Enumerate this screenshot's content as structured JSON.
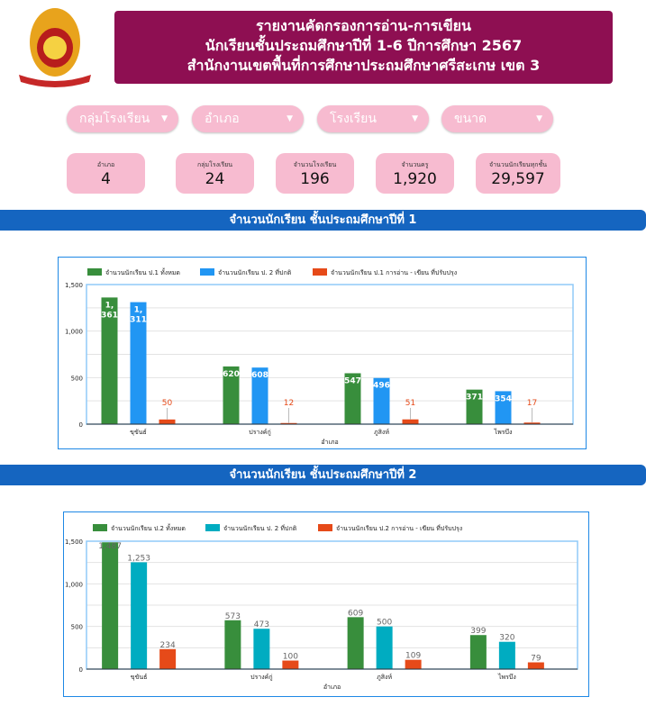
{
  "header": {
    "line1": "รายงานคัดกรองการอ่าน-การเขียน",
    "line2": "นักเรียนชั้นประถมศึกษาปีที่ 1-6 ปีการศึกษา 2567",
    "line3": "สำนักงานเขตพื้นที่การศึกษาประถมศึกษาศรีสะเกษ เขต 3"
  },
  "filters": [
    "กลุ่มโรงเรียน",
    "อำเภอ",
    "โรงเรียน",
    "ขนาด"
  ],
  "stats": [
    {
      "label": "อำเภอ",
      "value": "4"
    },
    {
      "label": "กลุ่มโรงเรียน",
      "value": "24"
    },
    {
      "label": "จำนวนโรงเรียน",
      "value": "196"
    },
    {
      "label": "จำนวนครู",
      "value": "1,920"
    },
    {
      "label": "จำนวนนักเรียนทุกชั้น",
      "value": "29,597"
    }
  ],
  "sections": [
    "จำนวนนักเรียน ชั้นประถมศึกษาปีที่ 1",
    "จำนวนนักเรียน ชั้นประถมศึกษาปีที่ 2"
  ],
  "chart_data": [
    {
      "type": "bar",
      "categories": [
        "ขุขันธ์",
        "ปรางค์กู่",
        "ภูสิงห์",
        "ไพรบึง"
      ],
      "xlabel": "อำเภอ",
      "ylim": [
        0,
        1500
      ],
      "yticks": [
        "0",
        "500",
        "1,000",
        "1,500"
      ],
      "legend": "top-left",
      "series": [
        {
          "name": "จำนวนนักเรียน ป.1 ทั้งหมด",
          "color": "#388e3c",
          "values": [
            1361,
            620,
            547,
            371
          ]
        },
        {
          "name": "จำนวนนักเรียน ป. 2 ที่ปกติ",
          "color": "#2196f3",
          "values": [
            1311,
            608,
            496,
            354
          ]
        },
        {
          "name": "จำนวนนักเรียน ป.1 การอ่าน - เขียน ที่ปรับปรุง",
          "color": "#e64a19",
          "values": [
            50,
            12,
            51,
            17
          ]
        }
      ]
    },
    {
      "type": "bar",
      "categories": [
        "ขุขันธ์",
        "ปรางค์กู่",
        "ภูสิงห์",
        "ไพรบึง"
      ],
      "xlabel": "อำเภอ",
      "ylim": [
        0,
        1500
      ],
      "yticks": [
        "0",
        "500",
        "1,000",
        "1,500"
      ],
      "legend": "top-left",
      "series": [
        {
          "name": "จำนวนนักเรียน ป.2 ทั้งหมด",
          "color": "#388e3c",
          "values": [
            1487,
            573,
            609,
            399
          ]
        },
        {
          "name": "จำนวนนักเรียน ป. 2 ที่ปกติ",
          "color": "#00acc1",
          "values": [
            1253,
            473,
            500,
            320
          ]
        },
        {
          "name": "จำนวนนักเรียน ป.2 การอ่าน - เขียน ที่ปรับปรุง",
          "color": "#e64a19",
          "values": [
            234,
            100,
            109,
            79
          ]
        }
      ]
    }
  ]
}
